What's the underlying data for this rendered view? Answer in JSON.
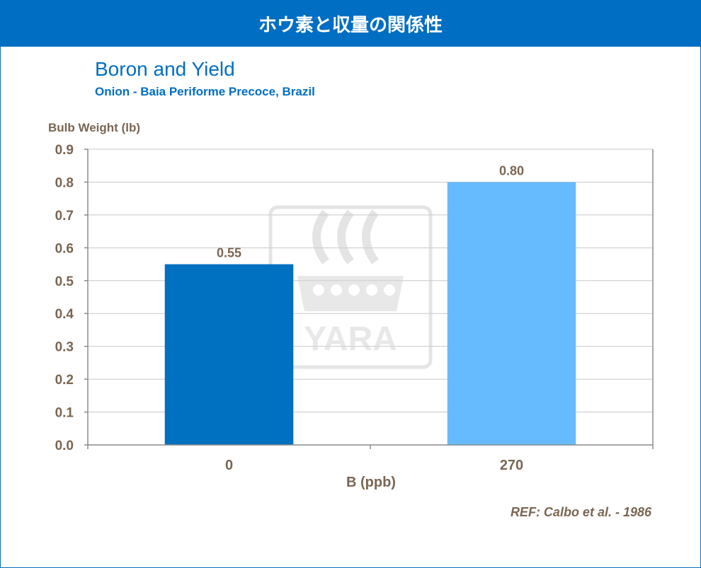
{
  "banner": {
    "title": "ホウ素と収量の関係性"
  },
  "header": {
    "title": "Boron and Yield",
    "subtitle": "Onion - Baia Periforme Precoce, Brazil"
  },
  "reference": "REF: Calbo et al. - 1986",
  "watermark": {
    "text": "YARA"
  },
  "colors": {
    "banner": "#006ec3",
    "title": "#006ec3",
    "axis_text": "#7a6653",
    "bar_0": "#0070c0",
    "bar_1": "#66bbff",
    "grid": "#c8c8c8"
  },
  "chart_data": {
    "type": "bar",
    "categories": [
      "0",
      "270"
    ],
    "values": [
      0.55,
      0.8
    ],
    "data_labels": [
      "0.55",
      "0.80"
    ],
    "xlabel": "B (ppb)",
    "ylabel": "Bulb Weight (lb)",
    "ylim": [
      0,
      0.9
    ],
    "yticks": [
      "0.0",
      "0.1",
      "0.2",
      "0.3",
      "0.4",
      "0.5",
      "0.6",
      "0.7",
      "0.8",
      "0.9"
    ],
    "grid": true,
    "legend": "none"
  }
}
